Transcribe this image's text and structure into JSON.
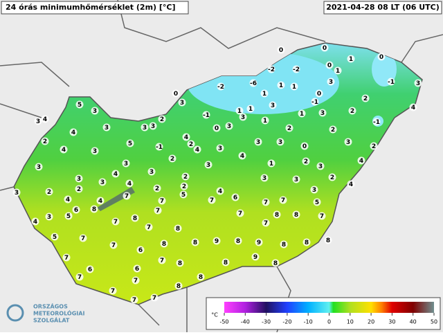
{
  "header": {
    "title": "24 órás minimumhőmérséklet (2m) [°C]",
    "timestamp": "2021-04-28 08 LT (06 UTC)"
  },
  "stations": {
    "values": [
      0,
      0,
      0,
      1,
      0,
      -2,
      -2,
      1,
      0,
      -2,
      -6,
      1,
      1,
      1,
      3,
      -1,
      3,
      3,
      0,
      2,
      5,
      1,
      3,
      -1,
      1,
      -1,
      3,
      1,
      1,
      2,
      4,
      4,
      3,
      3,
      2,
      3,
      3,
      3,
      3,
      0,
      2,
      3,
      -1,
      2,
      4,
      2,
      5,
      -1,
      4,
      2,
      4,
      3,
      3,
      3,
      0,
      3,
      2,
      4,
      3,
      4,
      2,
      3,
      1,
      2,
      3,
      4,
      3,
      3,
      4,
      3,
      3,
      3,
      2,
      3,
      3,
      2,
      2,
      2,
      4,
      2,
      2,
      4,
      3,
      4,
      3,
      5,
      7,
      6,
      7,
      7,
      7,
      7,
      5,
      4,
      4,
      3,
      6,
      5,
      8,
      4,
      7,
      7,
      8,
      7,
      8,
      8,
      7,
      7,
      7,
      8,
      5,
      7,
      8,
      7,
      8,
      9,
      8,
      9,
      8,
      8,
      8,
      7,
      6,
      6,
      7,
      8,
      9,
      8,
      6,
      7,
      7,
      7,
      8,
      8,
      8,
      7,
      7
    ]
  },
  "legend": {
    "unit": "°C",
    "ticks": [
      -50,
      -40,
      -30,
      -20,
      -10,
      0,
      10,
      20,
      30,
      40,
      50
    ]
  },
  "logo": {
    "line1": "ORSZÁGOS",
    "line2": "METEOROLÓGIAI",
    "line3": "SZOLGÁLAT"
  }
}
